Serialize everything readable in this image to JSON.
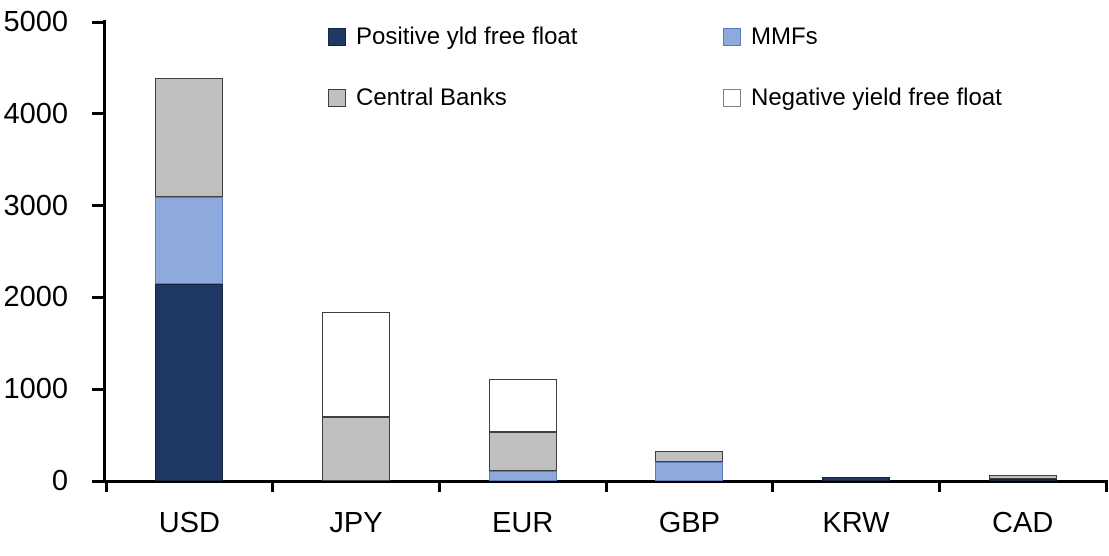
{
  "chart_data": {
    "type": "bar",
    "stacked": true,
    "title": "",
    "categories": [
      "USD",
      "JPY",
      "EUR",
      "GBP",
      "KRW",
      "CAD"
    ],
    "series": [
      {
        "name": "Positive yld free float",
        "color": "#1F3864",
        "border_color": "#16243F",
        "values": [
          2150,
          0,
          0,
          0,
          40,
          25
        ]
      },
      {
        "name": "MMFs",
        "color": "#8EA9DB",
        "border_color": "#5A7DBE",
        "values": [
          940,
          0,
          110,
          210,
          0,
          0
        ]
      },
      {
        "name": "Central Banks",
        "color": "#BFBFBF",
        "border_color": "#3F3F3F",
        "values": [
          1300,
          700,
          420,
          115,
          0,
          45
        ]
      },
      {
        "name": "Negative yield free float",
        "color": "#FFFFFF",
        "border_color": "#3F3F3F",
        "values": [
          0,
          1140,
          580,
          0,
          0,
          0
        ]
      }
    ],
    "totals": [
      4390,
      1840,
      1110,
      325,
      40,
      70
    ],
    "ylim": [
      0,
      5000
    ],
    "yticks": [
      0,
      1000,
      2000,
      3000,
      4000,
      5000
    ],
    "grid": false,
    "legend_position": "top",
    "legend_rows": [
      [
        "Positive yld free float",
        "MMFs"
      ],
      [
        "Central Banks",
        "Negative yield free float"
      ]
    ],
    "axis_color": "#000000",
    "background_color": "#FFFFFF"
  }
}
